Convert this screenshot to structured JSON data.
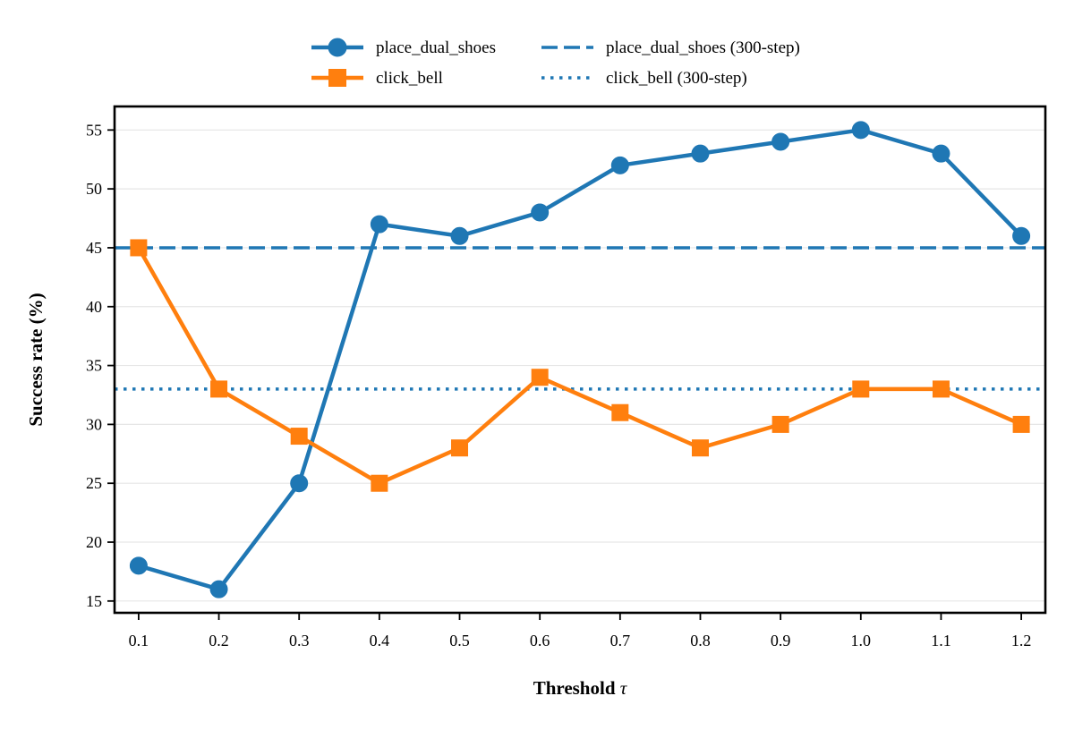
{
  "chart_data": {
    "type": "line",
    "title": "",
    "xlabel": "Threshold",
    "xlabel_symbol": "τ",
    "ylabel": "Success rate (%)",
    "x": [
      0.1,
      0.2,
      0.3,
      0.4,
      0.5,
      0.6,
      0.7,
      0.8,
      0.9,
      1.0,
      1.1,
      1.2
    ],
    "x_tick_labels": [
      "0.1",
      "0.2",
      "0.3",
      "0.4",
      "0.5",
      "0.6",
      "0.7",
      "0.8",
      "0.9",
      "1.0",
      "1.1",
      "1.2"
    ],
    "y_ticks": [
      15,
      20,
      25,
      30,
      35,
      40,
      45,
      50,
      55
    ],
    "y_tick_labels": [
      "15",
      "20",
      "25",
      "30",
      "35",
      "40",
      "45",
      "50",
      "55"
    ],
    "xlim": [
      0.07,
      1.23
    ],
    "ylim": [
      14,
      57
    ],
    "grid": "horizontal",
    "legend_position": "top-center, above plot",
    "series": [
      {
        "name": "place_dual_shoes",
        "values": [
          18,
          16,
          25,
          47,
          46,
          48,
          52,
          53,
          54,
          55,
          53,
          46
        ],
        "color": "#1f77b4",
        "marker": "circle"
      },
      {
        "name": "click_bell",
        "values": [
          45,
          33,
          29,
          25,
          28,
          34,
          31,
          28,
          30,
          33,
          33,
          30
        ],
        "color": "#ff7f0e",
        "marker": "square"
      }
    ],
    "reference_lines": [
      {
        "name": "place_dual_shoes (300-step)",
        "value": 45,
        "color": "#1f77b4",
        "style": "dashed"
      },
      {
        "name": "click_bell (300-step)",
        "value": 33,
        "color": "#1f77b4",
        "style": "dotted"
      }
    ],
    "legend": [
      {
        "label": "place_dual_shoes",
        "kind": "series",
        "ref": 0
      },
      {
        "label": "place_dual_shoes (300-step)",
        "kind": "reference",
        "ref": 0
      },
      {
        "label": "click_bell",
        "kind": "series",
        "ref": 1
      },
      {
        "label": "click_bell (300-step)",
        "kind": "reference",
        "ref": 1
      }
    ]
  }
}
